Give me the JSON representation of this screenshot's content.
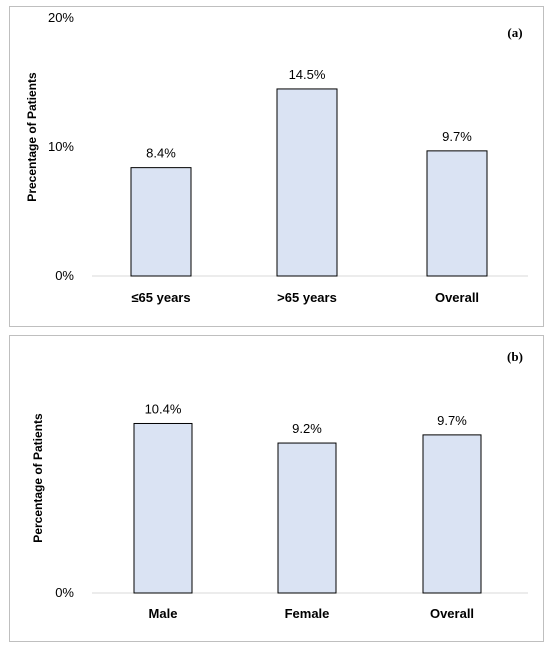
{
  "chart_data": [
    {
      "panel_label": "(a)",
      "type": "bar",
      "ylabel": "Precentage of Patients",
      "yticks": [
        "0%",
        "10%",
        "20%"
      ],
      "ylim": [
        0,
        20
      ],
      "categories": [
        "≤65 years",
        ">65 years",
        "Overall"
      ],
      "values": [
        8.4,
        14.5,
        9.7
      ],
      "data_labels": [
        "8.4%",
        "14.5%",
        "9.7%"
      ],
      "bar_color": "#dae3f3",
      "bar_border": "#000000",
      "grid": false
    },
    {
      "panel_label": "(b)",
      "type": "bar",
      "ylabel": "Percentage of Patients",
      "yticks": [
        "0%"
      ],
      "ylim": [
        0,
        14
      ],
      "categories": [
        "Male",
        "Female",
        "Overall"
      ],
      "values": [
        10.4,
        9.2,
        9.7
      ],
      "data_labels": [
        "10.4%",
        "9.2%",
        "9.7%"
      ],
      "bar_color": "#dae3f3",
      "bar_border": "#000000",
      "grid": false
    }
  ]
}
